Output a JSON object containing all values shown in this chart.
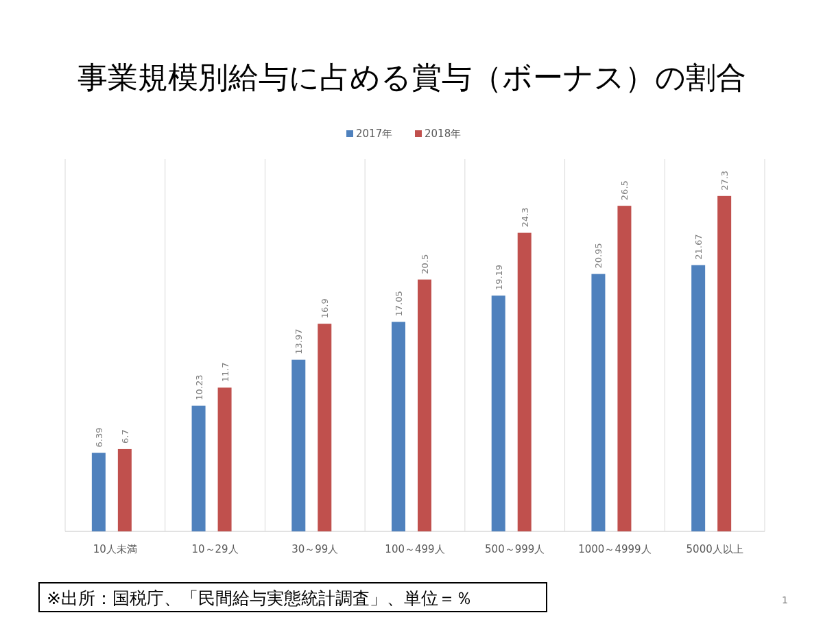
{
  "chart_data": {
    "type": "bar",
    "title": "事業規模別給与に占める賞与（ボーナス）の割合",
    "categories": [
      "10人未満",
      "10～29人",
      "30～99人",
      "100～499人",
      "500～999人",
      "1000～4999人",
      "5000人以上"
    ],
    "series": [
      {
        "name": "2017年",
        "color": "#4f81bd",
        "values": [
          6.39,
          10.23,
          13.97,
          17.05,
          19.19,
          20.95,
          21.67
        ]
      },
      {
        "name": "2018年",
        "color": "#c0504d",
        "values": [
          6.7,
          11.7,
          16.9,
          20.5,
          24.3,
          26.5,
          27.3
        ]
      }
    ],
    "data_labels": true,
    "grid": "x",
    "legend": "top",
    "annotations": [
      "※出所：国税庁、「民間給与実態統計調査」、単位＝％",
      "1"
    ]
  }
}
